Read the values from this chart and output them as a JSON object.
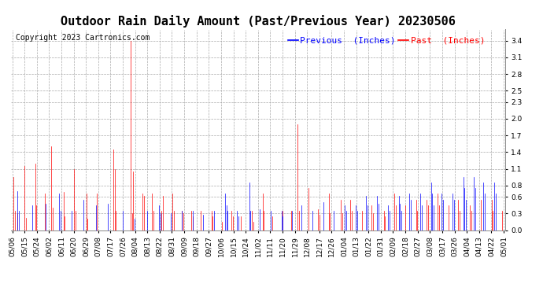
{
  "title": "Outdoor Rain Daily Amount (Past/Previous Year) 20230506",
  "copyright_text": "Copyright 2023 Cartronics.com",
  "legend_previous": "Previous  (Inches)",
  "legend_past": "Past  (Inches)",
  "previous_color": "#0000ff",
  "past_color": "#ff0000",
  "background_color": "#ffffff",
  "grid_color": "#aaaaaa",
  "ylim": [
    0.0,
    3.6
  ],
  "yticks": [
    0.0,
    0.3,
    0.6,
    0.8,
    1.1,
    1.4,
    1.7,
    2.0,
    2.3,
    2.5,
    2.8,
    3.1,
    3.4
  ],
  "x_labels": [
    "05/06",
    "05/15",
    "05/24",
    "06/02",
    "06/11",
    "06/20",
    "06/29",
    "07/08",
    "07/17",
    "07/26",
    "08/04",
    "08/13",
    "08/22",
    "08/31",
    "09/09",
    "09/18",
    "09/27",
    "10/06",
    "10/15",
    "10/24",
    "11/02",
    "11/11",
    "11/20",
    "11/29",
    "12/08",
    "12/17",
    "12/26",
    "01/04",
    "01/13",
    "01/22",
    "01/31",
    "02/09",
    "02/18",
    "02/27",
    "03/08",
    "03/17",
    "03/26",
    "04/04",
    "04/13",
    "04/22",
    "05/01"
  ],
  "num_points": 366,
  "title_fontsize": 11,
  "copyright_fontsize": 7,
  "legend_fontsize": 8,
  "tick_fontsize": 6.5
}
